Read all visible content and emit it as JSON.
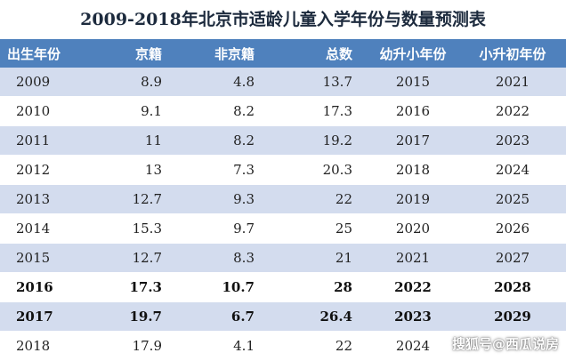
{
  "title": "2009-2018年北京市适龄儿童入学年份与数量预测表",
  "columns": [
    "出生年份",
    "京籍",
    "非京籍",
    "总数",
    "幼升小年份",
    "小升初年份"
  ],
  "rows": [
    [
      "2009",
      "8.9",
      "4.8",
      "13.7",
      "2015",
      "2021"
    ],
    [
      "2010",
      "9.1",
      "8.2",
      "17.3",
      "2016",
      "2022"
    ],
    [
      "2011",
      "11",
      "8.2",
      "19.2",
      "2017",
      "2023"
    ],
    [
      "2012",
      "13",
      "7.3",
      "20.3",
      "2018",
      "2024"
    ],
    [
      "2013",
      "12.7",
      "9.3",
      "22",
      "2019",
      "2025"
    ],
    [
      "2014",
      "15.3",
      "9.7",
      "25",
      "2020",
      "2026"
    ],
    [
      "2015",
      "12.7",
      "8.3",
      "21",
      "2021",
      "2027"
    ],
    [
      "2016",
      "17.3",
      "10.7",
      "28",
      "2022",
      "2028"
    ],
    [
      "2017",
      "19.7",
      "6.7",
      "26.4",
      "2023",
      "2029"
    ],
    [
      "2018",
      "17.9",
      "4.1",
      "22",
      "2024",
      ""
    ]
  ],
  "bold_rows": [
    "2016",
    "2017"
  ],
  "watermark": "搜狐号@西瓜说房",
  "colors": {
    "header_bg": "#4f81bd",
    "stripe_bg": "#d3dcee",
    "title_text": "#1c2a3d"
  }
}
